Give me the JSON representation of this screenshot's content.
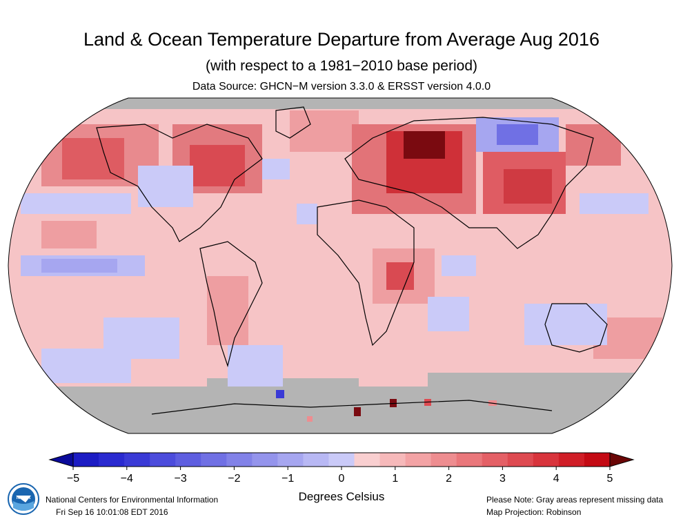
{
  "header": {
    "title": "Land & Ocean Temperature Departure from Average Aug 2016",
    "subtitle": "(with respect to a 1981−2010 base period)",
    "source": "Data Source: GHCN−M version 3.3.0 & ERSST version 4.0.0"
  },
  "map": {
    "projection_note": "Map Projection: Robinson",
    "missing_color": "#b4b4b4",
    "missing_note": "Please Note: Gray areas represent missing data",
    "highlights": [
      {
        "region": "western-russia",
        "anomaly": 5
      },
      {
        "region": "eastern-europe",
        "anomaly": 3
      },
      {
        "region": "central-asia",
        "anomaly": 3
      },
      {
        "region": "northeast-north-america",
        "anomaly": 2.5
      },
      {
        "region": "northwest-north-america",
        "anomaly": 2
      },
      {
        "region": "east-siberia",
        "anomaly": -1.5
      },
      {
        "region": "eastern-pacific-band",
        "anomaly": -1
      },
      {
        "region": "antarctic-coast-spots",
        "anomaly": 5
      }
    ]
  },
  "colorbar": {
    "ticks": [
      "−5",
      "−4",
      "−3",
      "−2",
      "−1",
      "0",
      "1",
      "2",
      "3",
      "4",
      "5"
    ],
    "units": "Degrees Celsius",
    "colors": [
      "#1c1cc4",
      "#2a2ad0",
      "#3a3ad6",
      "#4c4cdc",
      "#5e5ee0",
      "#7070e4",
      "#8282e8",
      "#9494ec",
      "#a6a6f0",
      "#b8b8f4",
      "#cacaf8",
      "#f9cfd0",
      "#f6b9ba",
      "#f3a3a5",
      "#ee8d90",
      "#ea777b",
      "#e46066",
      "#de4a51",
      "#d8343c",
      "#d01e27",
      "#c40a14"
    ],
    "end_low": "#0a0a9a",
    "end_high": "#6a0606"
  },
  "footer": {
    "org": "National Centers for Environmental Information",
    "timestamp": "Fri Sep 16 10:01:08 EDT 2016",
    "logo_text": "NOAA"
  }
}
